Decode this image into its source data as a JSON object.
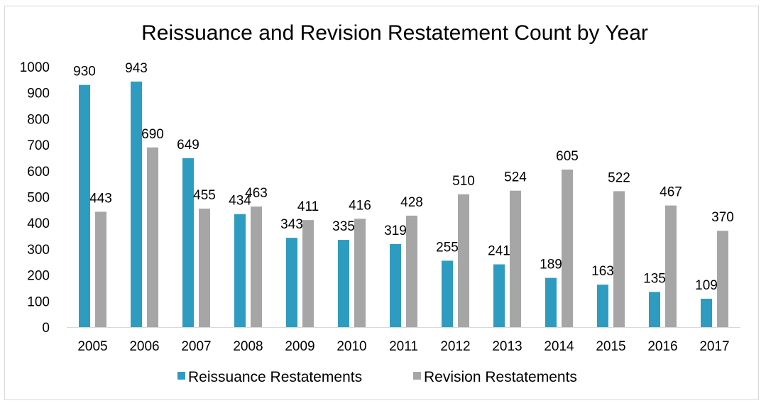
{
  "chart_data": {
    "type": "bar",
    "title": "Reissuance and Revision Restatement Count by Year",
    "xlabel": "",
    "ylabel": "",
    "ylim": [
      0,
      1000
    ],
    "yticks": [
      0,
      100,
      200,
      300,
      400,
      500,
      600,
      700,
      800,
      900,
      1000
    ],
    "grid": false,
    "legend_position": "bottom",
    "categories": [
      "2005",
      "2006",
      "2007",
      "2008",
      "2009",
      "2010",
      "2011",
      "2012",
      "2013",
      "2014",
      "2015",
      "2016",
      "2017"
    ],
    "series": [
      {
        "name": "Reissuance Restatements",
        "color": "#2e9cc0",
        "values": [
          930,
          943,
          649,
          434,
          343,
          335,
          319,
          255,
          241,
          189,
          163,
          135,
          109
        ]
      },
      {
        "name": "Revision Restatements",
        "color": "#a6a6a6",
        "values": [
          443,
          690,
          455,
          463,
          411,
          416,
          428,
          510,
          524,
          605,
          522,
          467,
          370
        ]
      }
    ]
  }
}
